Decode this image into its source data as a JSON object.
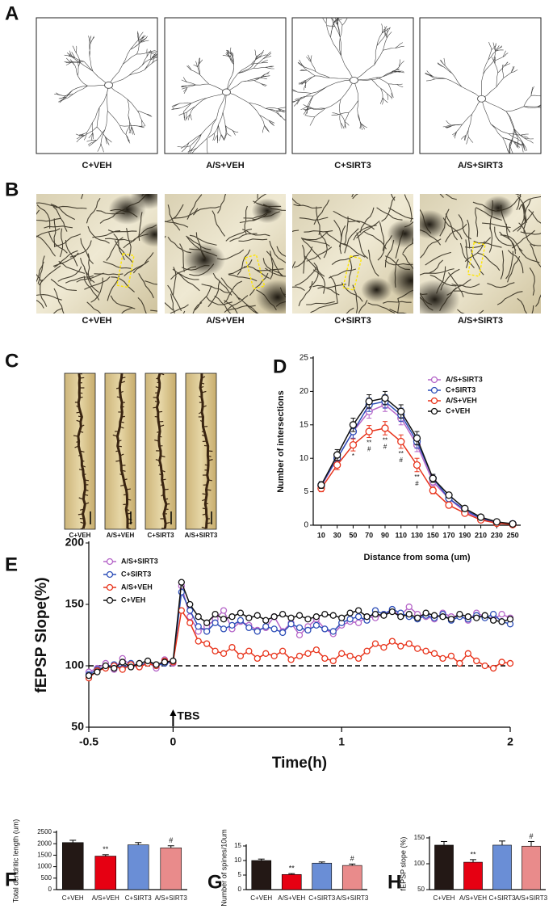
{
  "figure": {
    "panel_labels": [
      "A",
      "B",
      "C",
      "D",
      "E",
      "F",
      "G",
      "H"
    ]
  },
  "image_panels": [
    {
      "captions": [
        "C+VEH",
        "A/S+VEH",
        "C+SIRT3",
        "A/S+SIRT3"
      ]
    },
    {
      "captions": [
        "C+VEH",
        "A/S+VEH",
        "C+SIRT3",
        "A/S+SIRT3"
      ]
    },
    {
      "captions": [
        "C+VEH",
        "A/S+VEH",
        "C+SIRT3",
        "A/S+SIRT3"
      ]
    }
  ],
  "chart_data": [
    {
      "type": "line",
      "x_label": "Distance from soma (um)",
      "y_label": "Number of intersections",
      "categories": [
        "10",
        "30",
        "50",
        "70",
        "90",
        "110",
        "130",
        "150",
        "170",
        "190",
        "210",
        "230",
        "250"
      ],
      "ylim": [
        0,
        25
      ],
      "yticks": [
        0,
        5,
        10,
        15,
        20,
        25
      ],
      "legend": "upper right",
      "series": [
        {
          "name": "A/S+SIRT3",
          "color": "#b565c8",
          "values": [
            5.8,
            10,
            14,
            17,
            18,
            16,
            12,
            6.5,
            4,
            2,
            1,
            0.4,
            0.2
          ],
          "errors": [
            0.5,
            0.8,
            1,
            1,
            1,
            1,
            1,
            0.6,
            0.4,
            0.3,
            0.2,
            0.1,
            0.1
          ]
        },
        {
          "name": "C+SIRT3",
          "color": "#2e4fb8",
          "values": [
            6,
            10,
            14,
            18,
            18.5,
            16.5,
            12.5,
            7,
            4,
            2.3,
            1,
            0.4,
            0.2
          ],
          "errors": [
            0.5,
            0.8,
            1,
            1,
            1,
            1,
            1,
            0.6,
            0.4,
            0.3,
            0.2,
            0.1,
            0.1
          ]
        },
        {
          "name": "A/S+VEH",
          "color": "#e8341c",
          "values": [
            5.5,
            9,
            12,
            14,
            14.5,
            12.5,
            9,
            5.2,
            3,
            1.8,
            0.8,
            0.3,
            0.1
          ],
          "errors": [
            0.5,
            0.7,
            0.9,
            0.9,
            1,
            1,
            1,
            0.5,
            0.4,
            0.3,
            0.2,
            0.1,
            0.1
          ],
          "significance_vs_control": [
            null,
            null,
            "*",
            "**",
            "**",
            "**",
            "**",
            null,
            null,
            null,
            null,
            null,
            null
          ],
          "significance_vs_treatment": [
            null,
            null,
            null,
            "#",
            "#",
            "#",
            "#",
            null,
            null,
            null,
            null,
            null,
            null
          ]
        },
        {
          "name": "C+VEH",
          "color": "#111111",
          "values": [
            6,
            10.5,
            15,
            18.5,
            19,
            17,
            13,
            7,
            4.5,
            2.5,
            1.2,
            0.5,
            0.2
          ],
          "errors": [
            0.5,
            0.8,
            1,
            1,
            1,
            1,
            1,
            0.6,
            0.4,
            0.3,
            0.2,
            0.1,
            0.1
          ]
        }
      ]
    },
    {
      "type": "line",
      "x_label": "Time(h)",
      "y_label": "fEPSP Slope(%)",
      "x": [
        -0.5,
        -0.45,
        -0.4,
        -0.35,
        -0.3,
        -0.25,
        -0.2,
        -0.15,
        -0.1,
        -0.05,
        0,
        0.05,
        0.1,
        0.15,
        0.2,
        0.25,
        0.3,
        0.35,
        0.4,
        0.45,
        0.5,
        0.55,
        0.6,
        0.65,
        0.7,
        0.75,
        0.8,
        0.85,
        0.9,
        0.95,
        1,
        1.05,
        1.1,
        1.15,
        1.2,
        1.25,
        1.3,
        1.35,
        1.4,
        1.45,
        1.5,
        1.55,
        1.6,
        1.65,
        1.7,
        1.75,
        1.8,
        1.85,
        1.9,
        1.95,
        2
      ],
      "xlim": [
        -0.5,
        2
      ],
      "xticks": [
        -0.5,
        0,
        1,
        2
      ],
      "ylim": [
        50,
        200
      ],
      "yticks": [
        50,
        100,
        150,
        200
      ],
      "reference_line": 100,
      "legend": "upper left",
      "annotations": [
        {
          "x": 0,
          "text": "TBS"
        }
      ],
      "series": [
        {
          "name": "A/S+SIRT3",
          "color": "#b565c8",
          "values": [
            95,
            98,
            102,
            97,
            106,
            100,
            99,
            103,
            98,
            105,
            102,
            165,
            140,
            128,
            132,
            138,
            145,
            130,
            136,
            133,
            129,
            131,
            140,
            128,
            135,
            125,
            132,
            138,
            130,
            126,
            133,
            136,
            135,
            140,
            139,
            142,
            145,
            141,
            148,
            142,
            140,
            138,
            143,
            140,
            141,
            137,
            143,
            140,
            138,
            142,
            139
          ]
        },
        {
          "name": "C+SIRT3",
          "color": "#2e4fb8",
          "values": [
            93,
            97,
            99,
            101,
            98,
            102,
            100,
            103,
            100,
            102,
            103,
            160,
            145,
            132,
            128,
            135,
            130,
            133,
            137,
            131,
            128,
            132,
            130,
            127,
            134,
            131,
            129,
            133,
            130,
            128,
            135,
            138,
            140,
            137,
            145,
            142,
            146,
            143,
            140,
            138,
            141,
            139,
            142,
            137,
            140,
            138,
            141,
            139,
            142,
            136,
            134
          ]
        },
        {
          "name": "A/S+VEH",
          "color": "#e8341c",
          "values": [
            90,
            96,
            98,
            100,
            97,
            101,
            99,
            102,
            100,
            104,
            103,
            145,
            135,
            120,
            118,
            112,
            110,
            115,
            108,
            112,
            106,
            110,
            108,
            112,
            105,
            108,
            110,
            113,
            106,
            104,
            110,
            108,
            106,
            112,
            118,
            115,
            120,
            116,
            118,
            114,
            112,
            110,
            106,
            108,
            102,
            110,
            104,
            100,
            98,
            103,
            102
          ]
        },
        {
          "name": "C+VEH",
          "color": "#111111",
          "values": [
            92,
            95,
            100,
            98,
            103,
            99,
            102,
            104,
            101,
            103,
            104,
            168,
            150,
            140,
            135,
            142,
            138,
            140,
            143,
            139,
            141,
            137,
            140,
            142,
            139,
            141,
            138,
            140,
            142,
            141,
            139,
            143,
            145,
            140,
            142,
            141,
            144,
            140,
            142,
            139,
            143,
            141,
            140,
            138,
            142,
            140,
            139,
            141,
            137,
            136,
            138
          ]
        }
      ]
    },
    {
      "type": "bar",
      "y_label": "Total dendritic length (um)",
      "categories": [
        "C+VEH",
        "A/S+VEH",
        "C+SIRT3",
        "A/S+SIRT3"
      ],
      "values": [
        2050,
        1460,
        1950,
        1820
      ],
      "errors": [
        100,
        60,
        100,
        90
      ],
      "colors": [
        "#231815",
        "#e60012",
        "#6a8ed6",
        "#e98b8b"
      ],
      "significance": [
        null,
        "**",
        null,
        "#"
      ],
      "ylim": [
        0,
        2500
      ],
      "yticks": [
        0,
        500,
        1000,
        1500,
        2000,
        2500
      ]
    },
    {
      "type": "bar",
      "y_label": "Number of spines/10um",
      "categories": [
        "C+VEH",
        "A/S+VEH",
        "C+SIRT3",
        "A/S+SIRT3"
      ],
      "values": [
        10,
        5.2,
        9.1,
        8.3
      ],
      "errors": [
        0.5,
        0.3,
        0.4,
        0.5
      ],
      "colors": [
        "#231815",
        "#e60012",
        "#6a8ed6",
        "#e98b8b"
      ],
      "significance": [
        null,
        "**",
        null,
        "#"
      ],
      "ylim": [
        0,
        15
      ],
      "yticks": [
        0,
        5,
        10,
        15
      ]
    },
    {
      "type": "bar",
      "y_label": "fEPSP slope (%)",
      "categories": [
        "C+VEH",
        "A/S+VEH",
        "C+SIRT3",
        "A/S+SIRT3"
      ],
      "values": [
        136,
        103,
        136,
        134
      ],
      "errors": [
        7,
        5,
        8,
        9
      ],
      "colors": [
        "#231815",
        "#e60012",
        "#6a8ed6",
        "#e98b8b"
      ],
      "significance": [
        null,
        "**",
        null,
        "#"
      ],
      "ylim": [
        50,
        150
      ],
      "yticks": [
        50,
        100,
        150
      ]
    }
  ]
}
